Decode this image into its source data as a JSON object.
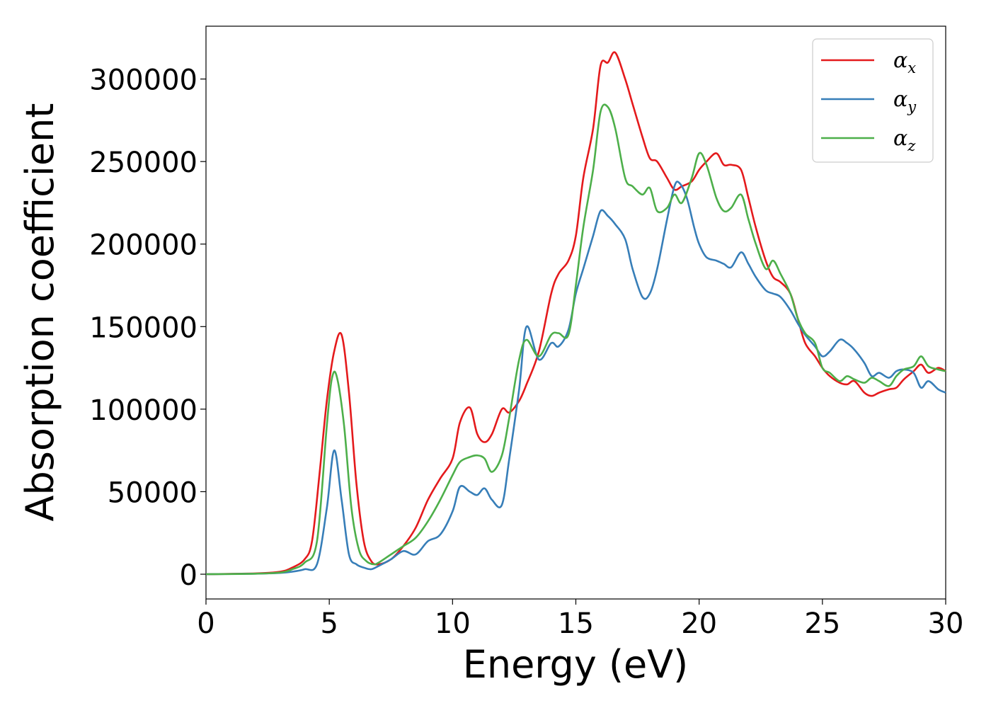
{
  "chart_data": {
    "type": "line",
    "xlabel": "Energy (eV)",
    "ylabel": "Absorption coefficient",
    "xlim": [
      0,
      30
    ],
    "ylim": [
      -15000,
      332000
    ],
    "xticks": [
      0,
      5,
      10,
      15,
      20,
      25,
      30
    ],
    "yticks": [
      0,
      50000,
      100000,
      150000,
      200000,
      250000,
      300000
    ],
    "grid": false,
    "legend_position": "top-right",
    "series": [
      {
        "name": "αx",
        "symbol": "α",
        "subscript": "x",
        "color": "#e41a1c",
        "x": [
          0,
          2,
          3,
          3.5,
          4,
          4.3,
          4.6,
          4.9,
          5.2,
          5.5,
          5.8,
          6.1,
          6.4,
          6.7,
          7,
          7.5,
          8,
          8.5,
          9,
          9.5,
          10,
          10.3,
          10.7,
          11,
          11.3,
          11.6,
          12,
          12.3,
          12.7,
          13,
          13.5,
          14,
          14.3,
          14.7,
          15,
          15.3,
          15.7,
          16,
          16.3,
          16.6,
          17,
          17.3,
          17.7,
          18,
          18.3,
          18.7,
          19,
          19.3,
          19.7,
          20,
          20.3,
          20.7,
          21,
          21.3,
          21.7,
          22,
          22.3,
          22.7,
          23,
          23.3,
          23.7,
          24,
          24.3,
          24.7,
          25,
          25.3,
          25.7,
          26,
          26.3,
          26.7,
          27,
          27.3,
          27.7,
          28,
          28.3,
          28.7,
          29,
          29.3,
          29.7,
          30
        ],
        "y": [
          0,
          500,
          1500,
          4000,
          9000,
          20000,
          60000,
          105000,
          135000,
          145000,
          110000,
          55000,
          20000,
          8000,
          6000,
          9000,
          17000,
          28000,
          45000,
          58000,
          70000,
          92000,
          101000,
          85000,
          80000,
          85000,
          100000,
          98000,
          105000,
          115000,
          135000,
          170000,
          182000,
          190000,
          205000,
          240000,
          270000,
          308000,
          310000,
          316000,
          300000,
          285000,
          265000,
          252000,
          250000,
          240000,
          233000,
          235000,
          238000,
          245000,
          250000,
          255000,
          248000,
          248000,
          245000,
          228000,
          210000,
          190000,
          180000,
          177000,
          170000,
          155000,
          140000,
          132000,
          125000,
          120000,
          116000,
          115000,
          117000,
          110000,
          108000,
          110000,
          112000,
          113000,
          118000,
          123000,
          127000,
          122000,
          125000,
          123000
        ]
      },
      {
        "name": "αy",
        "symbol": "α",
        "subscript": "y",
        "color": "#377eb8",
        "x": [
          0,
          2,
          3,
          3.5,
          4,
          4.5,
          4.9,
          5.2,
          5.5,
          5.8,
          6.1,
          6.4,
          6.7,
          7,
          7.5,
          8,
          8.5,
          9,
          9.5,
          10,
          10.3,
          10.7,
          11,
          11.3,
          11.6,
          12,
          12.3,
          12.7,
          13,
          13.5,
          14,
          14.3,
          14.7,
          15,
          15.3,
          15.7,
          16,
          16.3,
          16.6,
          17,
          17.3,
          17.7,
          18,
          18.3,
          18.7,
          19,
          19.2,
          19.5,
          19.8,
          20,
          20.3,
          20.7,
          21,
          21.3,
          21.7,
          22,
          22.3,
          22.7,
          23,
          23.3,
          23.7,
          24,
          24.3,
          24.7,
          25,
          25.3,
          25.7,
          26,
          26.3,
          26.7,
          27,
          27.3,
          27.7,
          28,
          28.3,
          28.7,
          29,
          29.3,
          29.7,
          30
        ],
        "y": [
          0,
          300,
          800,
          1500,
          3000,
          6000,
          40000,
          75000,
          45000,
          12000,
          6000,
          4000,
          3000,
          5000,
          9000,
          14000,
          12000,
          20000,
          24000,
          38000,
          53000,
          50000,
          48000,
          52000,
          45000,
          42000,
          70000,
          112000,
          150000,
          130000,
          140000,
          138000,
          148000,
          170000,
          185000,
          205000,
          220000,
          217000,
          212000,
          203000,
          185000,
          168000,
          170000,
          185000,
          215000,
          235000,
          237000,
          228000,
          210000,
          200000,
          192000,
          190000,
          188000,
          186000,
          195000,
          188000,
          180000,
          172000,
          170000,
          168000,
          160000,
          152000,
          145000,
          138000,
          132000,
          135000,
          142000,
          140000,
          136000,
          128000,
          120000,
          122000,
          119000,
          123000,
          124000,
          122000,
          113000,
          117000,
          112000,
          110000
        ]
      },
      {
        "name": "αz",
        "symbol": "α",
        "subscript": "z",
        "color": "#4daf4a",
        "x": [
          0,
          2,
          3,
          3.5,
          4,
          4.5,
          4.9,
          5.1,
          5.3,
          5.6,
          5.9,
          6.2,
          6.5,
          6.8,
          7,
          7.5,
          8,
          8.5,
          9,
          9.5,
          10,
          10.3,
          10.7,
          11,
          11.3,
          11.6,
          12,
          12.3,
          12.7,
          13,
          13.5,
          14,
          14.3,
          14.7,
          15,
          15.3,
          15.7,
          16,
          16.3,
          16.6,
          17,
          17.3,
          17.7,
          18,
          18.3,
          18.7,
          19,
          19.3,
          19.7,
          20,
          20.3,
          20.7,
          21,
          21.3,
          21.7,
          22,
          22.3,
          22.7,
          23,
          23.3,
          23.7,
          24,
          24.3,
          24.7,
          25,
          25.3,
          25.7,
          26,
          26.3,
          26.7,
          27,
          27.3,
          27.7,
          28,
          28.3,
          28.7,
          29,
          29.3,
          29.7,
          30
        ],
        "y": [
          0,
          300,
          1000,
          3000,
          7000,
          20000,
          90000,
          118000,
          120000,
          90000,
          40000,
          15000,
          8000,
          6000,
          7000,
          12000,
          17000,
          22000,
          32000,
          45000,
          60000,
          68000,
          71000,
          72000,
          70000,
          62000,
          72000,
          95000,
          130000,
          142000,
          132000,
          145000,
          146000,
          145000,
          175000,
          210000,
          245000,
          280000,
          283000,
          270000,
          240000,
          235000,
          230000,
          234000,
          220000,
          222000,
          230000,
          225000,
          240000,
          255000,
          248000,
          228000,
          220000,
          222000,
          230000,
          215000,
          200000,
          185000,
          190000,
          182000,
          170000,
          155000,
          146000,
          140000,
          125000,
          122000,
          117000,
          120000,
          118000,
          116000,
          119000,
          117000,
          114000,
          120000,
          124000,
          126000,
          132000,
          126000,
          124000,
          123000
        ]
      }
    ]
  }
}
